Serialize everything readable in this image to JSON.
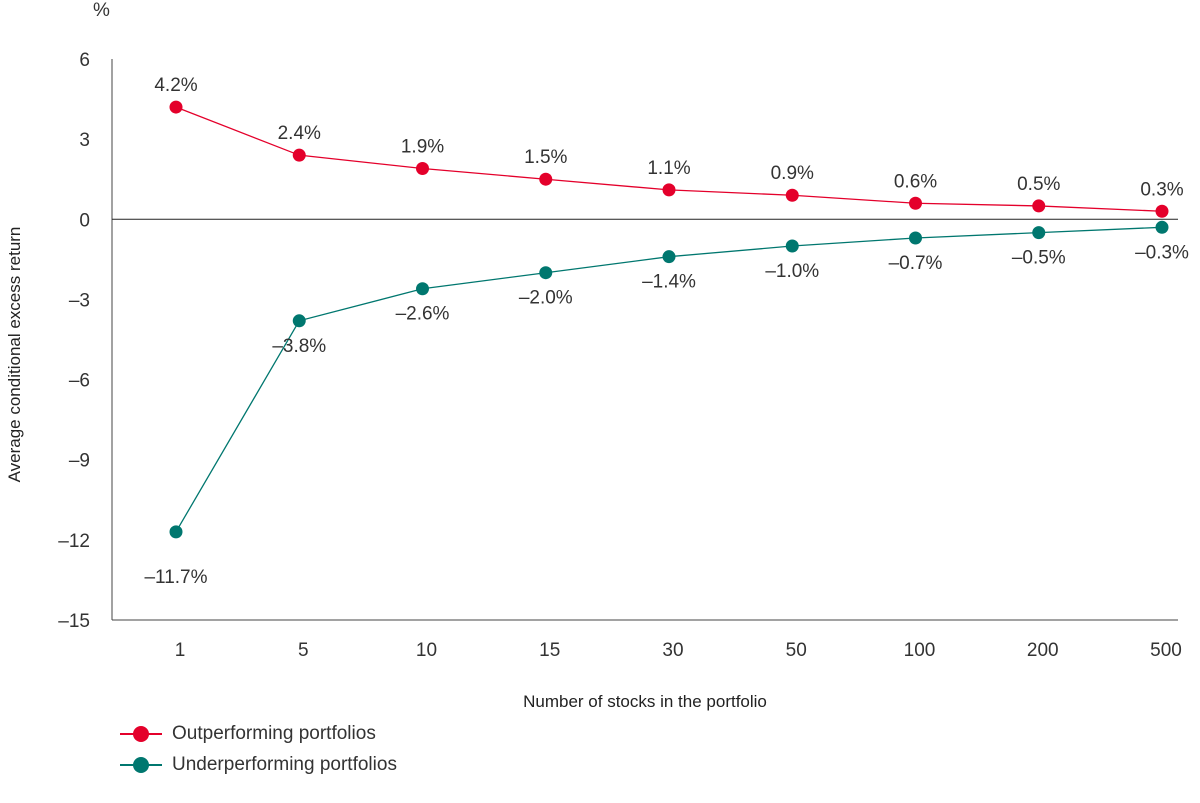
{
  "chart_data": {
    "type": "line",
    "unit_label": "%",
    "ylabel": "Average conditional excess return",
    "xlabel": "Number of stocks in the portfolio",
    "ylim": [
      -15,
      6
    ],
    "yticks": [
      6,
      3,
      0,
      -3,
      -6,
      -9,
      -12,
      -15
    ],
    "ytick_labels": [
      "6",
      "3",
      "0",
      "–3",
      "–6",
      "–9",
      "–12",
      "–15"
    ],
    "categories": [
      "1",
      "5",
      "10",
      "15",
      "30",
      "50",
      "100",
      "200",
      "500"
    ],
    "grid": false,
    "legend_position": "bottom-left",
    "series": [
      {
        "name": "Outperforming portfolios",
        "color": "#e4002b",
        "values": [
          4.2,
          2.4,
          1.9,
          1.5,
          1.1,
          0.9,
          0.6,
          0.5,
          0.3
        ],
        "labels": [
          "4.2%",
          "2.4%",
          "1.9%",
          "1.5%",
          "1.1%",
          "0.9%",
          "0.6%",
          "0.5%",
          "0.3%"
        ],
        "label_position": "above"
      },
      {
        "name": "Underperforming portfolios",
        "color": "#00776f",
        "values": [
          -11.7,
          -3.8,
          -2.6,
          -2.0,
          -1.4,
          -1.0,
          -0.7,
          -0.5,
          -0.3
        ],
        "labels": [
          "–11.7%",
          "–3.8%",
          "–2.6%",
          "–2.0%",
          "–1.4%",
          "–1.0%",
          "–0.7%",
          "–0.5%",
          "–0.3%"
        ],
        "label_position": "below"
      }
    ]
  }
}
